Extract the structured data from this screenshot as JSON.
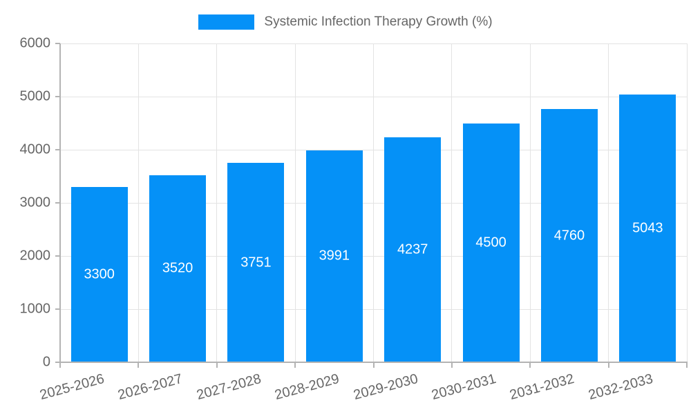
{
  "chart_data": {
    "type": "bar",
    "legend": "Systemic Infection Therapy Growth (%)",
    "legend_position": "top",
    "categories": [
      "2025-2026",
      "2026-2027",
      "2027-2028",
      "2028-2029",
      "2029-2030",
      "2030-2031",
      "2031-2032",
      "2032-2033"
    ],
    "values": [
      3300,
      3520,
      3751,
      3991,
      4237,
      4500,
      4760,
      5043
    ],
    "value_labels": [
      "3300",
      "3520",
      "3751",
      "3991",
      "4237",
      "4500",
      "4760",
      "5043"
    ],
    "ylim": [
      0,
      6000
    ],
    "ytick_step": 1000,
    "ytick_labels": [
      "0",
      "1000",
      "2000",
      "3000",
      "4000",
      "5000",
      "6000"
    ],
    "grid": true,
    "bar_color": "#0591f7",
    "value_label_color": "#ffffff",
    "axis_text_color": "#666666"
  }
}
